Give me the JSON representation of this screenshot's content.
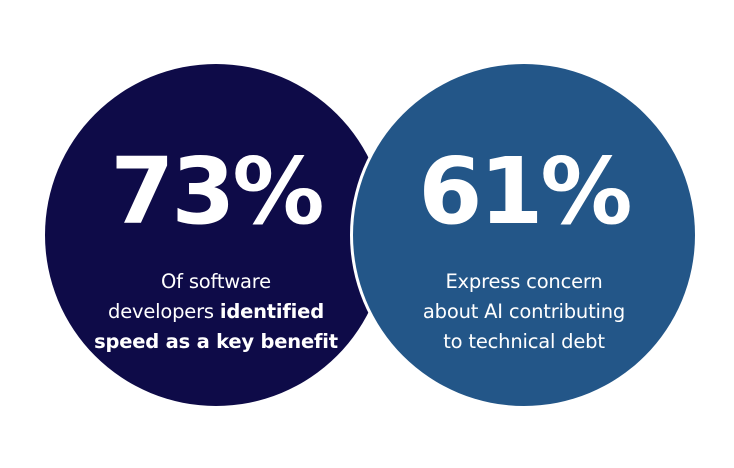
{
  "colors": {
    "left_circle": "#0e0b48",
    "right_circle": "#235688",
    "text": "#ffffff",
    "background": "#ffffff"
  },
  "stats": [
    {
      "value": "73%",
      "caption_line1": "Of software",
      "caption_line2_regular": "developers ",
      "caption_line2_bold": "identified",
      "caption_line3_bold": "speed as a key benefit"
    },
    {
      "value": "61%",
      "caption_line1": "Express concern",
      "caption_line2": "about AI contributing",
      "caption_line3": "to technical debt"
    }
  ]
}
